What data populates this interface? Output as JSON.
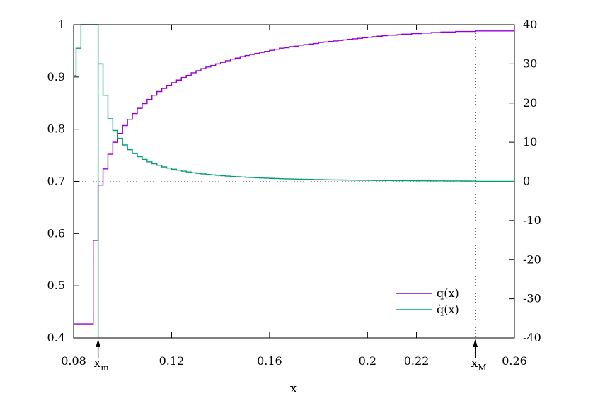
{
  "chart_data": {
    "type": "line",
    "title": "",
    "xlabel": "x",
    "ylabel_left": "",
    "ylabel_right": "",
    "xlim": [
      0.08,
      0.26
    ],
    "ylim_left": [
      0.4,
      1.0
    ],
    "ylim_right": [
      -40,
      40
    ],
    "x_ticks": [
      {
        "value": 0.08,
        "label": "0.08"
      },
      {
        "value": 0.12,
        "label": "0.12"
      },
      {
        "value": 0.16,
        "label": "0.16"
      },
      {
        "value": 0.2,
        "label": "0.2"
      },
      {
        "value": 0.22,
        "label": "0.22"
      },
      {
        "value": 0.26,
        "label": "0.26"
      }
    ],
    "y_left_ticks": [
      {
        "value": 0.4,
        "label": "0.4"
      },
      {
        "value": 0.5,
        "label": "0.5"
      },
      {
        "value": 0.6,
        "label": "0.6"
      },
      {
        "value": 0.7,
        "label": "0.7"
      },
      {
        "value": 0.8,
        "label": "0.8"
      },
      {
        "value": 0.9,
        "label": "0.9"
      },
      {
        "value": 1.0,
        "label": "1"
      }
    ],
    "y_right_ticks": [
      {
        "value": -40,
        "label": "-40"
      },
      {
        "value": -30,
        "label": "-30"
      },
      {
        "value": -20,
        "label": "-20"
      },
      {
        "value": -10,
        "label": "-10"
      },
      {
        "value": 0,
        "label": "0"
      },
      {
        "value": 10,
        "label": "10"
      },
      {
        "value": 20,
        "label": "20"
      },
      {
        "value": 30,
        "label": "30"
      },
      {
        "value": 40,
        "label": "40"
      }
    ],
    "markers": [
      {
        "value": 0.09,
        "base": "x",
        "sub": "m"
      },
      {
        "value": 0.244,
        "base": "x",
        "sub": "M"
      }
    ],
    "reference_lines": {
      "y_left": 0.7
    },
    "legend": {
      "position": "bottom-right"
    },
    "series": [
      {
        "name": "q(x)",
        "axis": "left",
        "color": "#9400d3",
        "step": true,
        "points": [
          [
            0.08,
            0.427
          ],
          [
            0.081,
            0.427
          ],
          [
            0.082,
            0.427
          ],
          [
            0.083,
            0.427
          ],
          [
            0.084,
            0.427
          ],
          [
            0.085,
            0.427
          ],
          [
            0.086,
            0.427
          ],
          [
            0.087,
            0.427
          ],
          [
            0.088,
            0.587
          ],
          [
            0.089,
            0.587
          ],
          [
            0.09,
            0.693
          ],
          [
            0.092,
            0.724
          ],
          [
            0.094,
            0.752
          ],
          [
            0.096,
            0.775
          ],
          [
            0.098,
            0.792
          ],
          [
            0.1,
            0.807
          ],
          [
            0.102,
            0.819
          ],
          [
            0.104,
            0.83
          ],
          [
            0.106,
            0.84
          ],
          [
            0.108,
            0.849
          ],
          [
            0.11,
            0.857
          ],
          [
            0.112,
            0.865
          ],
          [
            0.114,
            0.872
          ],
          [
            0.116,
            0.878
          ],
          [
            0.118,
            0.884
          ],
          [
            0.12,
            0.889
          ],
          [
            0.122,
            0.894
          ],
          [
            0.124,
            0.899
          ],
          [
            0.126,
            0.903
          ],
          [
            0.128,
            0.908
          ],
          [
            0.13,
            0.912
          ],
          [
            0.132,
            0.916
          ],
          [
            0.134,
            0.919
          ],
          [
            0.136,
            0.922
          ],
          [
            0.138,
            0.925
          ],
          [
            0.14,
            0.928
          ],
          [
            0.142,
            0.931
          ],
          [
            0.144,
            0.934
          ],
          [
            0.146,
            0.936
          ],
          [
            0.148,
            0.939
          ],
          [
            0.15,
            0.941
          ],
          [
            0.152,
            0.943
          ],
          [
            0.154,
            0.945
          ],
          [
            0.156,
            0.947
          ],
          [
            0.158,
            0.949
          ],
          [
            0.16,
            0.951
          ],
          [
            0.162,
            0.953
          ],
          [
            0.164,
            0.955
          ],
          [
            0.166,
            0.956
          ],
          [
            0.168,
            0.958
          ],
          [
            0.17,
            0.959
          ],
          [
            0.172,
            0.961
          ],
          [
            0.174,
            0.962
          ],
          [
            0.176,
            0.963
          ],
          [
            0.178,
            0.964
          ],
          [
            0.18,
            0.966
          ],
          [
            0.182,
            0.967
          ],
          [
            0.184,
            0.968
          ],
          [
            0.186,
            0.969
          ],
          [
            0.188,
            0.97
          ],
          [
            0.19,
            0.971
          ],
          [
            0.192,
            0.972
          ],
          [
            0.194,
            0.973
          ],
          [
            0.196,
            0.974
          ],
          [
            0.198,
            0.975
          ],
          [
            0.2,
            0.976
          ],
          [
            0.202,
            0.977
          ],
          [
            0.204,
            0.978
          ],
          [
            0.206,
            0.979
          ],
          [
            0.208,
            0.98
          ],
          [
            0.21,
            0.98
          ],
          [
            0.212,
            0.981
          ],
          [
            0.214,
            0.982
          ],
          [
            0.216,
            0.982
          ],
          [
            0.218,
            0.983
          ],
          [
            0.22,
            0.983
          ],
          [
            0.222,
            0.984
          ],
          [
            0.224,
            0.984
          ],
          [
            0.226,
            0.985
          ],
          [
            0.228,
            0.985
          ],
          [
            0.23,
            0.986
          ],
          [
            0.232,
            0.986
          ],
          [
            0.234,
            0.986
          ],
          [
            0.236,
            0.987
          ],
          [
            0.238,
            0.987
          ],
          [
            0.24,
            0.987
          ],
          [
            0.242,
            0.987
          ],
          [
            0.244,
            0.988
          ],
          [
            0.246,
            0.988
          ],
          [
            0.248,
            0.988
          ],
          [
            0.25,
            0.988
          ],
          [
            0.252,
            0.988
          ],
          [
            0.254,
            0.988
          ],
          [
            0.256,
            0.988
          ],
          [
            0.258,
            0.988
          ],
          [
            0.26,
            0.988
          ]
        ]
      },
      {
        "name": "q̇(x)",
        "axis": "right",
        "color": "#009e73",
        "step": true,
        "points": [
          [
            0.08,
            27.0
          ],
          [
            0.081,
            34.0
          ],
          [
            0.083,
            40.0
          ],
          [
            0.09,
            -40.0
          ],
          [
            0.09,
            30.0
          ],
          [
            0.092,
            22.0
          ],
          [
            0.094,
            16.0
          ],
          [
            0.096,
            13.0
          ],
          [
            0.098,
            11.0
          ],
          [
            0.1,
            9.3
          ],
          [
            0.102,
            8.1
          ],
          [
            0.104,
            7.1
          ],
          [
            0.106,
            6.3
          ],
          [
            0.108,
            5.6
          ],
          [
            0.11,
            5.0
          ],
          [
            0.112,
            4.5
          ],
          [
            0.114,
            4.1
          ],
          [
            0.116,
            3.7
          ],
          [
            0.118,
            3.4
          ],
          [
            0.12,
            3.1
          ],
          [
            0.122,
            2.85
          ],
          [
            0.124,
            2.6
          ],
          [
            0.126,
            2.4
          ],
          [
            0.128,
            2.2
          ],
          [
            0.13,
            2.05
          ],
          [
            0.132,
            1.9
          ],
          [
            0.134,
            1.77
          ],
          [
            0.136,
            1.65
          ],
          [
            0.138,
            1.54
          ],
          [
            0.14,
            1.44
          ],
          [
            0.142,
            1.35
          ],
          [
            0.144,
            1.26
          ],
          [
            0.146,
            1.18
          ],
          [
            0.148,
            1.11
          ],
          [
            0.15,
            1.04
          ],
          [
            0.152,
            0.98
          ],
          [
            0.154,
            0.92
          ],
          [
            0.156,
            0.87
          ],
          [
            0.158,
            0.82
          ],
          [
            0.16,
            0.77
          ],
          [
            0.162,
            0.73
          ],
          [
            0.164,
            0.69
          ],
          [
            0.166,
            0.65
          ],
          [
            0.168,
            0.62
          ],
          [
            0.17,
            0.58
          ],
          [
            0.172,
            0.55
          ],
          [
            0.174,
            0.52
          ],
          [
            0.176,
            0.5
          ],
          [
            0.178,
            0.47
          ],
          [
            0.18,
            0.45
          ],
          [
            0.182,
            0.42
          ],
          [
            0.184,
            0.4
          ],
          [
            0.186,
            0.38
          ],
          [
            0.188,
            0.36
          ],
          [
            0.19,
            0.34
          ],
          [
            0.192,
            0.32
          ],
          [
            0.194,
            0.31
          ],
          [
            0.196,
            0.29
          ],
          [
            0.198,
            0.28
          ],
          [
            0.2,
            0.26
          ],
          [
            0.202,
            0.25
          ],
          [
            0.204,
            0.24
          ],
          [
            0.206,
            0.22
          ],
          [
            0.208,
            0.21
          ],
          [
            0.21,
            0.2
          ],
          [
            0.212,
            0.19
          ],
          [
            0.214,
            0.18
          ],
          [
            0.216,
            0.17
          ],
          [
            0.218,
            0.16
          ],
          [
            0.22,
            0.15
          ],
          [
            0.222,
            0.14
          ],
          [
            0.224,
            0.14
          ],
          [
            0.226,
            0.13
          ],
          [
            0.228,
            0.12
          ],
          [
            0.23,
            0.12
          ],
          [
            0.232,
            0.11
          ],
          [
            0.234,
            0.1
          ],
          [
            0.236,
            0.1
          ],
          [
            0.238,
            0.09
          ],
          [
            0.24,
            0.09
          ],
          [
            0.242,
            0.08
          ],
          [
            0.244,
            0.0
          ],
          [
            0.26,
            0.0
          ]
        ]
      }
    ]
  }
}
